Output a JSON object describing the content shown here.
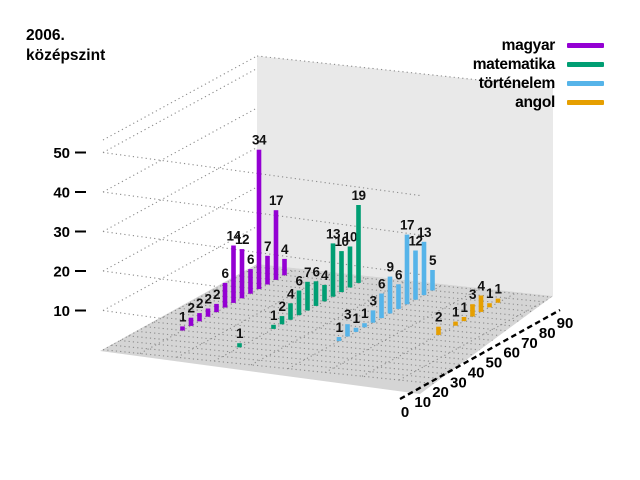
{
  "title": {
    "line1": "2006.",
    "line2": "középszint"
  },
  "legend": [
    {
      "label": "magyar",
      "color": "#9400d3"
    },
    {
      "label": "matematika",
      "color": "#009e73"
    },
    {
      "label": "történelem",
      "color": "#56b4e9"
    },
    {
      "label": "angol",
      "color": "#e69f00"
    }
  ],
  "colors": {
    "floor": "#d5d5d5",
    "wall": "#e9e9e9",
    "grid_dots": "#8c8c8c",
    "axis": "#000000",
    "label_text": "#111111"
  },
  "chart_data": {
    "type": "bar",
    "projection": "3d",
    "title": "2006. középszint",
    "x_range": [
      0,
      90
    ],
    "x_ticks": [
      0,
      10,
      20,
      30,
      40,
      50,
      60,
      70,
      80,
      90
    ],
    "z_ticks": [
      10,
      20,
      30,
      40,
      50
    ],
    "zlim": [
      0,
      55
    ],
    "grid": "dotted",
    "legend_position": "top-right",
    "value_labels": true,
    "series": [
      {
        "name": "magyar",
        "color": "#9400d3",
        "points": [
          [
            25,
            1
          ],
          [
            30,
            2
          ],
          [
            35,
            2
          ],
          [
            40,
            2
          ],
          [
            45,
            2
          ],
          [
            50,
            6
          ],
          [
            55,
            14
          ],
          [
            60,
            12
          ],
          [
            65,
            6
          ],
          [
            70,
            34
          ],
          [
            75,
            7
          ],
          [
            80,
            17
          ],
          [
            85,
            4
          ]
        ]
      },
      {
        "name": "matematika",
        "color": "#009e73",
        "points": [
          [
            15,
            1
          ],
          [
            35,
            1
          ],
          [
            40,
            2
          ],
          [
            45,
            4
          ],
          [
            50,
            6
          ],
          [
            55,
            7
          ],
          [
            60,
            6
          ],
          [
            65,
            4
          ],
          [
            70,
            13
          ],
          [
            75,
            10
          ],
          [
            80,
            10
          ],
          [
            85,
            19
          ]
        ]
      },
      {
        "name": "történelem",
        "color": "#56b4e9",
        "points": [
          [
            30,
            1
          ],
          [
            35,
            3
          ],
          [
            40,
            1
          ],
          [
            45,
            1
          ],
          [
            50,
            3
          ],
          [
            55,
            6
          ],
          [
            60,
            9
          ],
          [
            65,
            6
          ],
          [
            70,
            17
          ],
          [
            75,
            12
          ],
          [
            80,
            13
          ],
          [
            85,
            5
          ]
        ]
      },
      {
        "name": "angol",
        "color": "#e69f00",
        "points": [
          [
            45,
            2
          ],
          [
            55,
            1
          ],
          [
            60,
            1
          ],
          [
            65,
            3
          ],
          [
            70,
            4
          ],
          [
            75,
            1
          ],
          [
            80,
            1
          ]
        ]
      }
    ]
  }
}
